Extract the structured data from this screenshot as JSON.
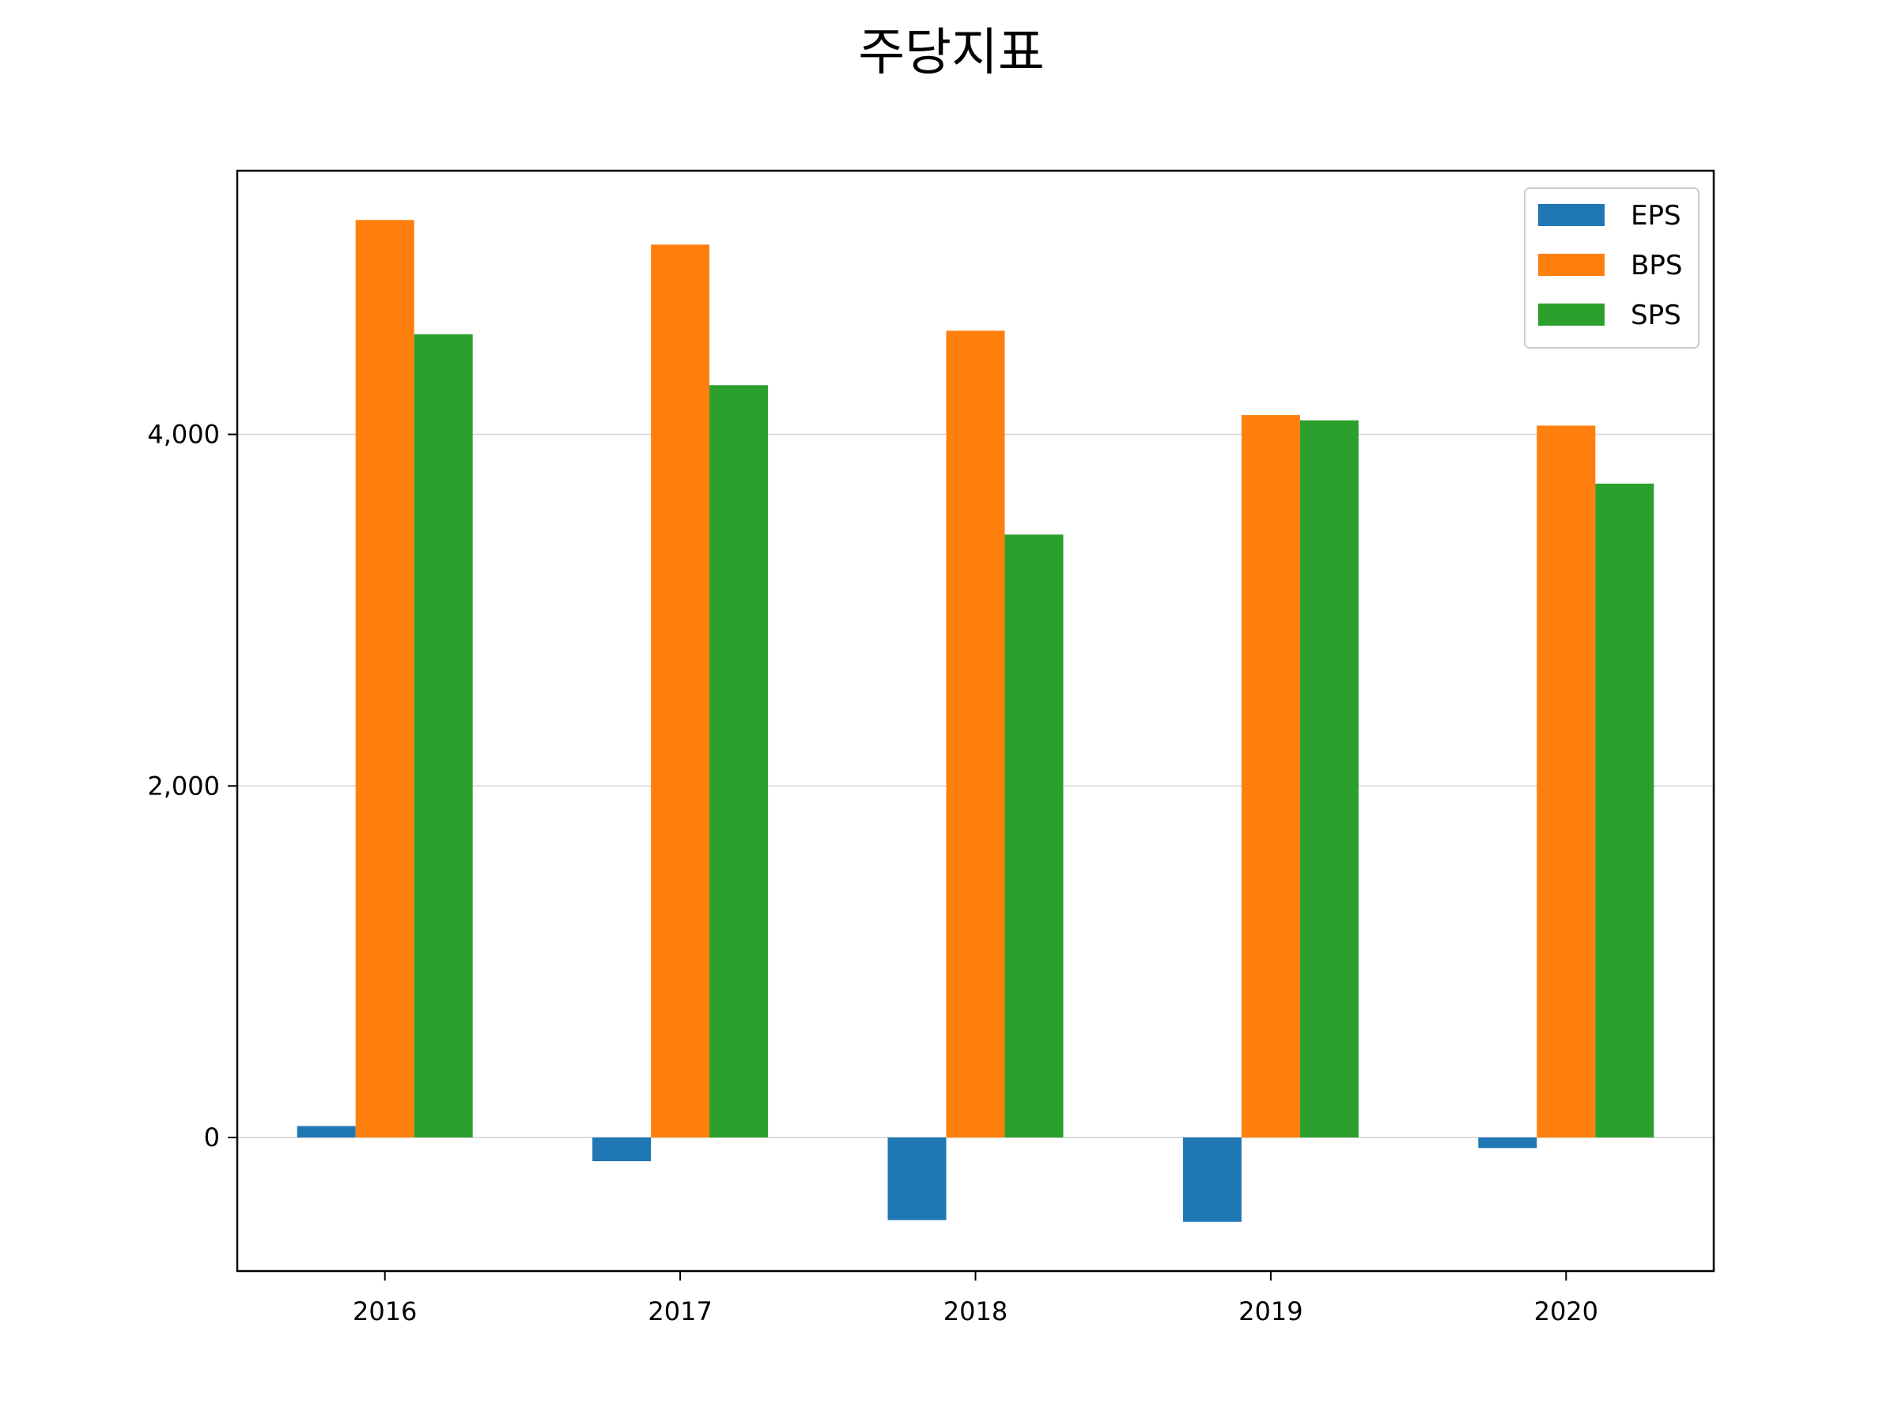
{
  "chart_data": {
    "type": "bar",
    "title": "주당지표",
    "xlabel": "",
    "ylabel": "",
    "categories": [
      "2016",
      "2017",
      "2018",
      "2019",
      "2020"
    ],
    "series": [
      {
        "name": "EPS",
        "values": [
          65,
          -135,
          -470,
          -480,
          -60
        ]
      },
      {
        "name": "BPS",
        "values": [
          5220,
          5080,
          4590,
          4110,
          4050
        ]
      },
      {
        "name": "SPS",
        "values": [
          4570,
          4280,
          3430,
          4080,
          3720
        ]
      }
    ],
    "ylim": [
      -760,
      5500
    ],
    "yticks": [
      0,
      2000,
      4000
    ],
    "ytick_labels": [
      "0",
      "2,000",
      "4,000"
    ],
    "grid": "horizontal",
    "legend_position": "top-right"
  },
  "colors": {
    "EPS": "#1f77b4",
    "BPS": "#ff7f0e",
    "SPS": "#2ca02c",
    "grid": "#d3d3d3",
    "axis": "#000000",
    "legend_border": "#cccccc"
  }
}
